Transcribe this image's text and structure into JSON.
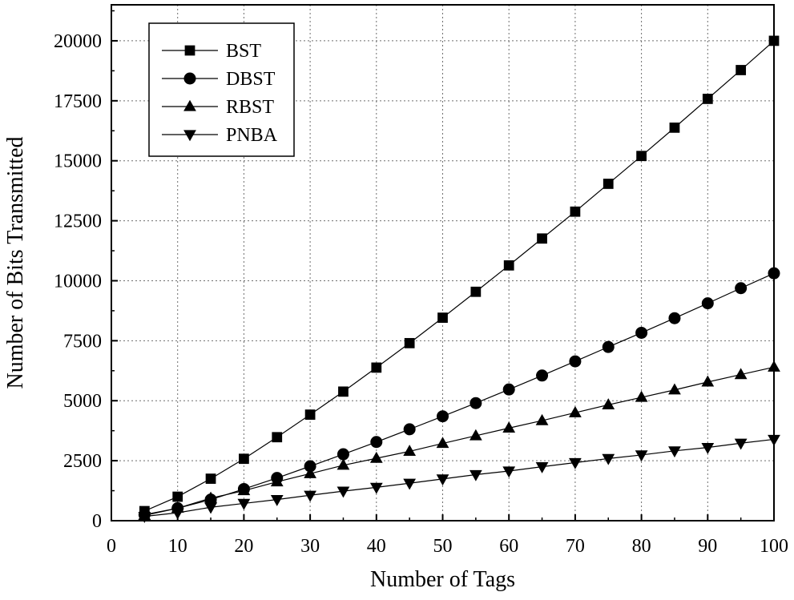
{
  "chart_data": {
    "type": "line",
    "title": "",
    "xlabel": "Number of Tags",
    "ylabel": "Number of Bits Transmitted",
    "xlim": [
      0,
      100
    ],
    "ylim": [
      0,
      21500
    ],
    "xticks": [
      0,
      10,
      20,
      30,
      40,
      50,
      60,
      70,
      80,
      90,
      100
    ],
    "yticks": [
      0,
      2500,
      5000,
      7500,
      10000,
      12500,
      15000,
      17500,
      20000
    ],
    "grid": true,
    "legend_position": "top-left",
    "x": [
      5,
      10,
      15,
      20,
      25,
      30,
      35,
      40,
      45,
      50,
      55,
      60,
      65,
      70,
      75,
      80,
      85,
      90,
      95,
      100
    ],
    "series": [
      {
        "name": "BST",
        "marker": "square",
        "values": [
          400,
          1000,
          1750,
          2580,
          3480,
          4420,
          5380,
          6380,
          7400,
          8460,
          9540,
          10640,
          11760,
          12880,
          14040,
          15200,
          16380,
          17580,
          18780,
          20000
        ]
      },
      {
        "name": "DBST",
        "marker": "circle",
        "values": [
          250,
          520,
          880,
          1320,
          1780,
          2270,
          2770,
          3280,
          3810,
          4350,
          4900,
          5470,
          6050,
          6640,
          7240,
          7830,
          8440,
          9060,
          9690,
          10310
        ]
      },
      {
        "name": "RBST",
        "marker": "triangle-up",
        "values": [
          220,
          520,
          940,
          1250,
          1620,
          1960,
          2310,
          2600,
          2890,
          3220,
          3540,
          3860,
          4170,
          4500,
          4830,
          5140,
          5450,
          5780,
          6090,
          6400
        ]
      },
      {
        "name": "PNBA",
        "marker": "triangle-down",
        "values": [
          180,
          330,
          560,
          720,
          880,
          1060,
          1230,
          1390,
          1560,
          1740,
          1920,
          2070,
          2250,
          2420,
          2590,
          2740,
          2910,
          3050,
          3230,
          3390
        ]
      }
    ]
  }
}
